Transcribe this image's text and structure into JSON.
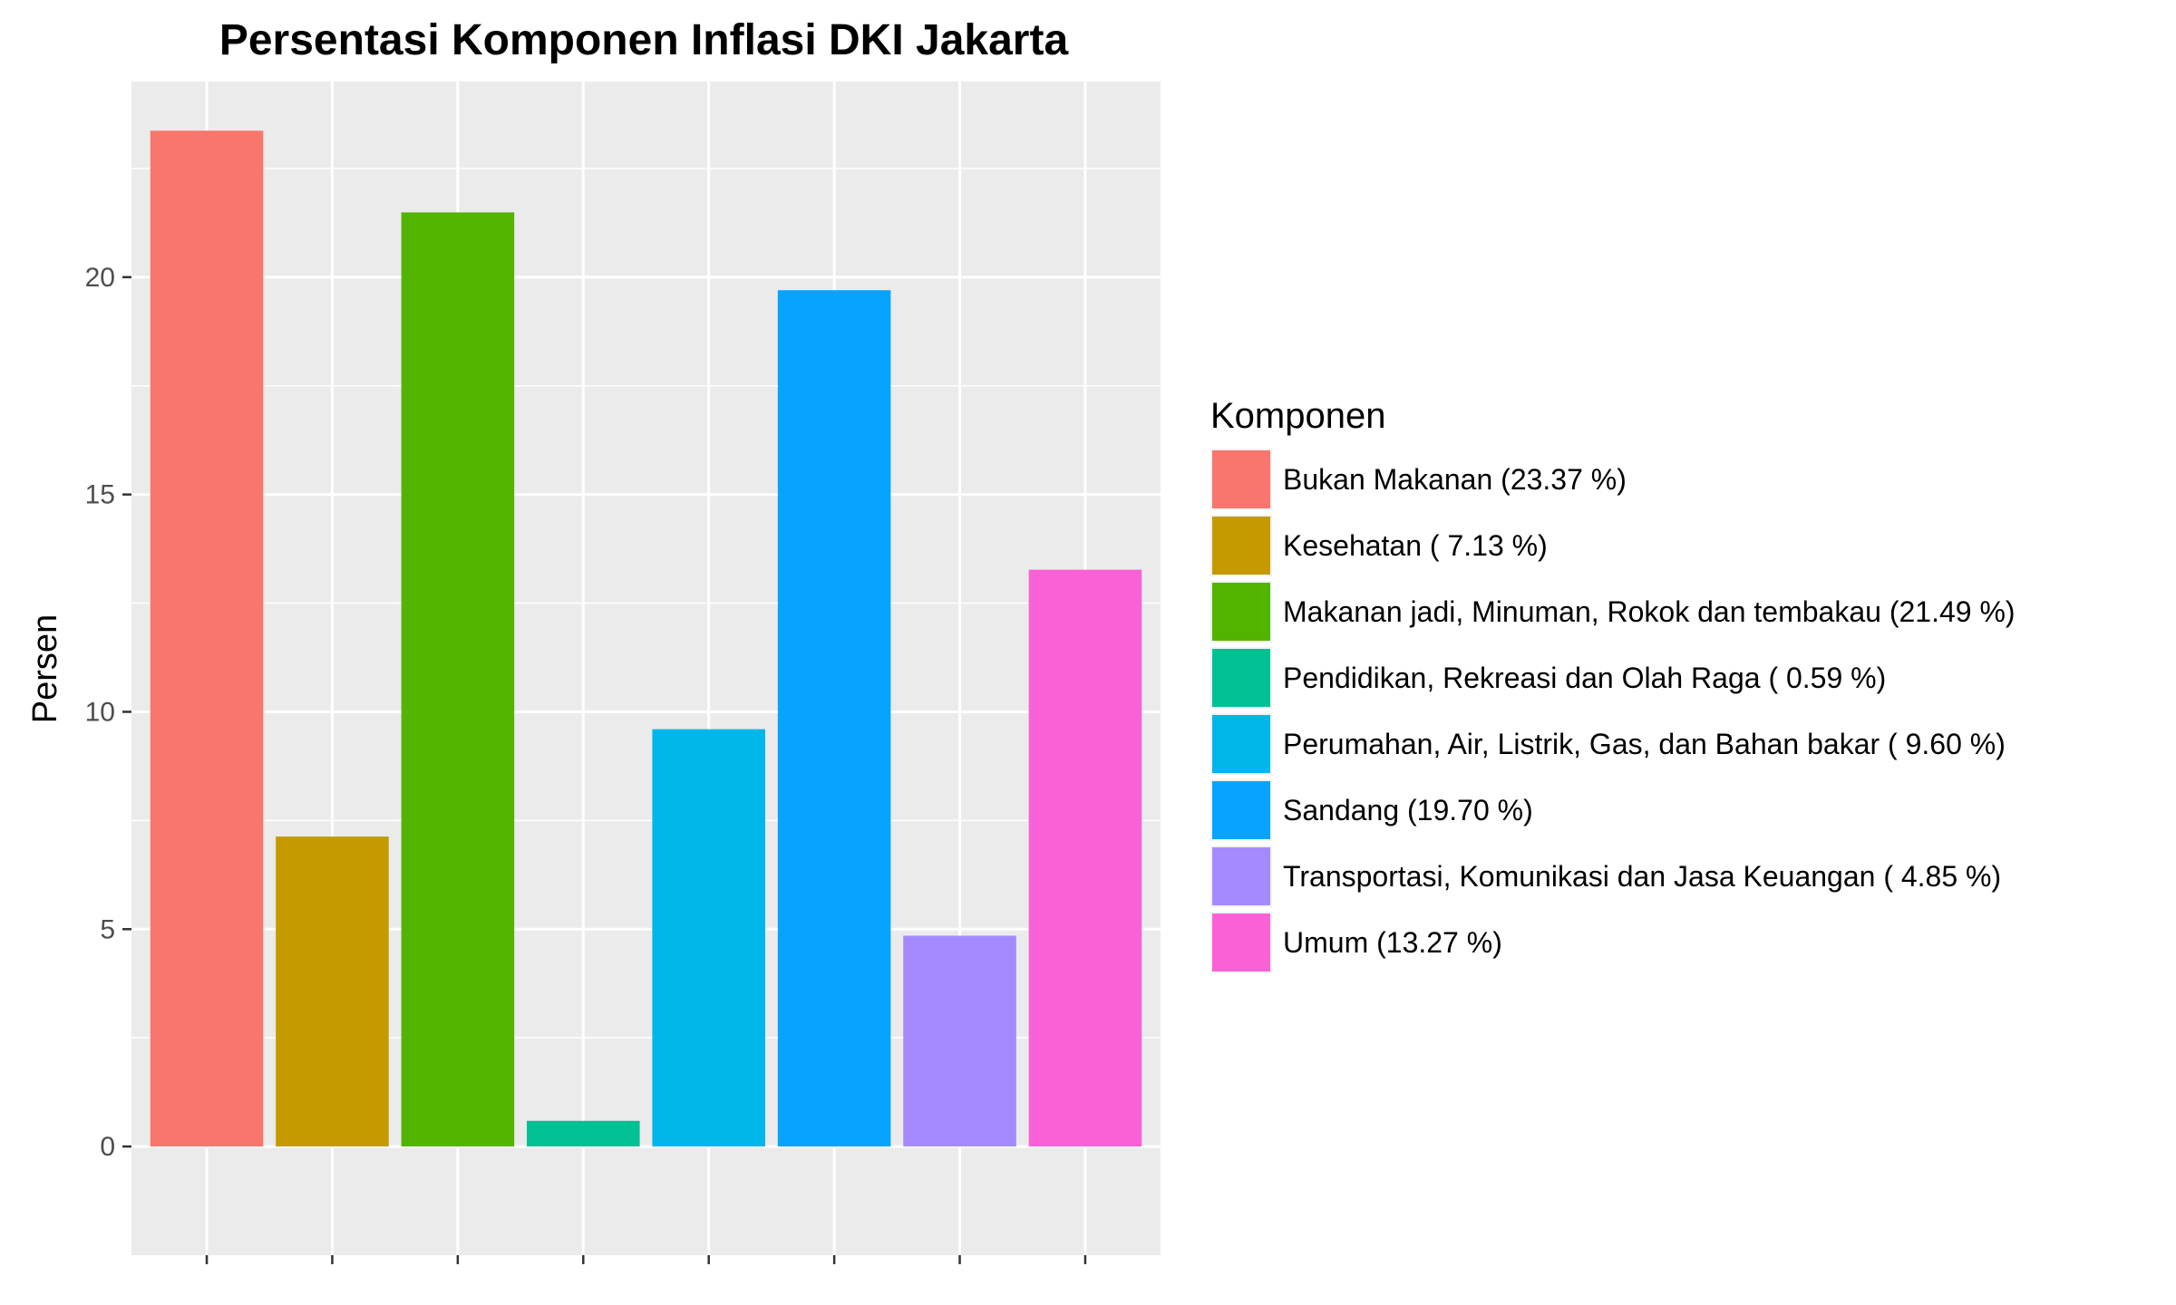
{
  "chart_data": {
    "type": "bar",
    "title": "Persentasi Komponen Inflasi DKI Jakarta",
    "xlabel": "",
    "ylabel": "Persen",
    "ylim": [
      -2.5,
      24.5
    ],
    "yticks": [
      0,
      5,
      10,
      15,
      20
    ],
    "grid": true,
    "legend": {
      "title": "Komponen",
      "placement": "right"
    },
    "categories": [
      "Bukan Makanan (23.37 %)",
      "Kesehatan ( 7.13 %)",
      "Makanan jadi, Minuman, Rokok dan tembakau (21.49 %)",
      "Pendidikan, Rekreasi dan Olah Raga ( 0.59 %)",
      "Perumahan, Air, Listrik, Gas, dan Bahan bakar ( 9.60 %)",
      "Sandang (19.70 %)",
      "Transportasi, Komunikasi dan Jasa Keuangan ( 4.85 %)",
      "Umum (13.27 %)"
    ],
    "values": [
      23.37,
      7.13,
      21.49,
      0.59,
      9.6,
      19.7,
      4.85,
      13.27
    ],
    "colors": [
      "#F8766D",
      "#C49A00",
      "#53B400",
      "#00C094",
      "#00B6EB",
      "#06A4FF",
      "#A58AFF",
      "#FB61D7"
    ]
  }
}
